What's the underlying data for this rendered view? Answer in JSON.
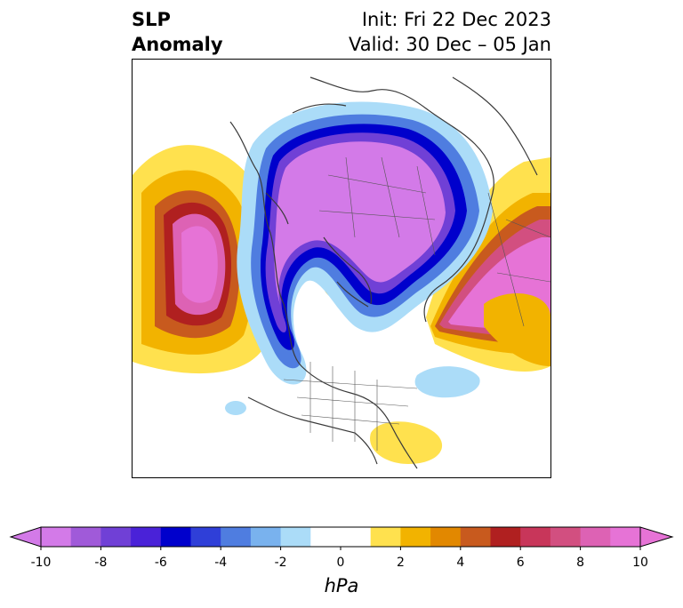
{
  "header": {
    "title_line1": "SLP",
    "title_line2": "Anomaly",
    "init": "Init: Fri 22 Dec 2023",
    "valid": "Valid: 30 Dec – 05 Jan"
  },
  "map": {
    "projection": "north-polar-stereographic",
    "variable": "SLP Anomaly",
    "features": [
      {
        "name": "arctic-low-center",
        "sign": "negative",
        "peak_hpa": -10
      },
      {
        "name": "north-pacific-high",
        "sign": "positive",
        "peak_hpa": 10
      },
      {
        "name": "eurasian-siberian-high",
        "sign": "positive",
        "peak_hpa": 10
      },
      {
        "name": "greenland-high",
        "sign": "positive",
        "peak_hpa": 8
      },
      {
        "name": "mid-atlantic-low",
        "sign": "negative",
        "peak_hpa": -2
      },
      {
        "name": "southwest-us-low",
        "sign": "negative",
        "peak_hpa": -2
      },
      {
        "name": "southeast-us-high",
        "sign": "positive",
        "peak_hpa": 2
      },
      {
        "name": "mediterranean-high",
        "sign": "positive",
        "peak_hpa": 4
      }
    ]
  },
  "colorbar": {
    "unit": "hPa",
    "min": -10,
    "max": 10,
    "tick_labels": [
      "-10",
      "-8",
      "-6",
      "-4",
      "-2",
      "0",
      "2",
      "4",
      "6",
      "8",
      "10"
    ],
    "colors": [
      "#d37ae8",
      "#a05ad9",
      "#7040d6",
      "#4a22d8",
      "#0000cc",
      "#2f3fd8",
      "#4f7de0",
      "#79b2ee",
      "#abdcf8",
      "#ffffff",
      "#ffffff",
      "#ffe14e",
      "#f2b300",
      "#e28800",
      "#c85a1e",
      "#b02020",
      "#c8365a",
      "#d24f80",
      "#dd62b4",
      "#e673d6"
    ],
    "extend": "both"
  }
}
